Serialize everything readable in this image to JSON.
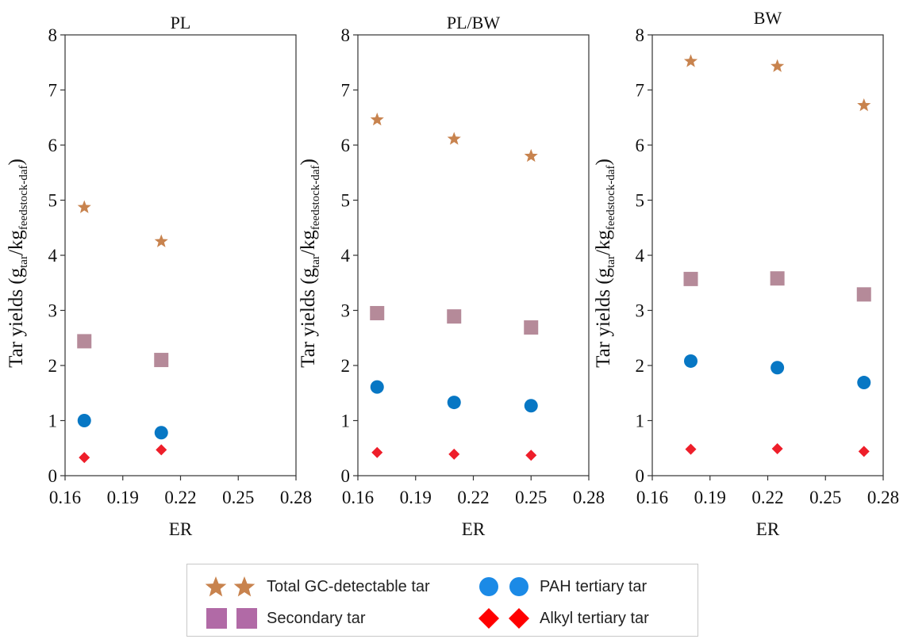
{
  "colors": {
    "total": "#c8834e",
    "secondary": "#b58a99",
    "pah": "#0777c4",
    "alkyl": "#ee1e2a",
    "legend_total": "#c8834e",
    "legend_secondary": "#b16aa6",
    "legend_pah": "#1b8ae6",
    "legend_alkyl": "#ff0000"
  },
  "legend": {
    "total_label": "Total GC-detectable tar",
    "secondary_label": "Secondary tar",
    "pah_label": "PAH tertiary tar",
    "alkyl_label": "Alkyl tertiary tar"
  },
  "chart_data": [
    {
      "type": "scatter",
      "title": "PL",
      "xlabel": "ER",
      "ylabel": "Tar yields (g",
      "ylabel_sub1": "tar",
      "ylabel_mid": "/kg",
      "ylabel_sub2": "feedstock-daf",
      "ylabel_end": ")",
      "xlim": [
        0.16,
        0.28
      ],
      "ylim": [
        0,
        8
      ],
      "xticks": [
        "0.16",
        "0.19",
        "0.22",
        "0.25",
        "0.28"
      ],
      "yticks": [
        "0",
        "1",
        "2",
        "3",
        "4",
        "5",
        "6",
        "7",
        "8"
      ],
      "x": [
        0.17,
        0.21
      ],
      "series": [
        {
          "name": "Total GC-detectable tar",
          "marker": "star",
          "values": [
            4.87,
            4.25
          ]
        },
        {
          "name": "Secondary tar",
          "marker": "square",
          "values": [
            2.44,
            2.1
          ]
        },
        {
          "name": "PAH tertiary tar",
          "marker": "circle",
          "values": [
            1.0,
            0.78
          ]
        },
        {
          "name": "Alkyl tertiary tar",
          "marker": "diamond",
          "values": [
            0.33,
            0.47
          ]
        }
      ]
    },
    {
      "type": "scatter",
      "title": "PL/BW",
      "xlabel": "ER",
      "ylabel": "Tar yields (g",
      "ylabel_sub1": "tar",
      "ylabel_mid": "/kg",
      "ylabel_sub2": "feedstock-daf",
      "ylabel_end": ")",
      "xlim": [
        0.16,
        0.28
      ],
      "ylim": [
        0,
        8
      ],
      "xticks": [
        "0.16",
        "0.19",
        "0.22",
        "0.25",
        "0.28"
      ],
      "yticks": [
        "0",
        "1",
        "2",
        "3",
        "4",
        "5",
        "6",
        "7",
        "8"
      ],
      "x": [
        0.17,
        0.21,
        0.25
      ],
      "series": [
        {
          "name": "Total GC-detectable tar",
          "marker": "star",
          "values": [
            6.46,
            6.11,
            5.8
          ]
        },
        {
          "name": "Secondary tar",
          "marker": "square",
          "values": [
            2.95,
            2.89,
            2.69
          ]
        },
        {
          "name": "PAH tertiary tar",
          "marker": "circle",
          "values": [
            1.61,
            1.33,
            1.27
          ]
        },
        {
          "name": "Alkyl tertiary tar",
          "marker": "diamond",
          "values": [
            0.42,
            0.39,
            0.37
          ]
        }
      ]
    },
    {
      "type": "scatter",
      "title": "BW",
      "xlabel": "ER",
      "ylabel": "Tar yields (g",
      "ylabel_sub1": "tar",
      "ylabel_mid": "/kg",
      "ylabel_sub2": "feedstock-daf",
      "ylabel_end": ")",
      "xlim": [
        0.16,
        0.28
      ],
      "ylim": [
        0,
        8
      ],
      "xticks": [
        "0.16",
        "0.19",
        "0.22",
        "0.25",
        "0.28"
      ],
      "yticks": [
        "0",
        "1",
        "2",
        "3",
        "4",
        "5",
        "6",
        "7",
        "8"
      ],
      "x": [
        0.18,
        0.225,
        0.27
      ],
      "series": [
        {
          "name": "Total GC-detectable tar",
          "marker": "star",
          "values": [
            7.52,
            7.43,
            6.72
          ]
        },
        {
          "name": "Secondary tar",
          "marker": "square",
          "values": [
            3.57,
            3.58,
            3.29
          ]
        },
        {
          "name": "PAH tertiary tar",
          "marker": "circle",
          "values": [
            2.08,
            1.96,
            1.69
          ]
        },
        {
          "name": "Alkyl tertiary tar",
          "marker": "diamond",
          "values": [
            0.48,
            0.49,
            0.44
          ]
        }
      ]
    }
  ]
}
